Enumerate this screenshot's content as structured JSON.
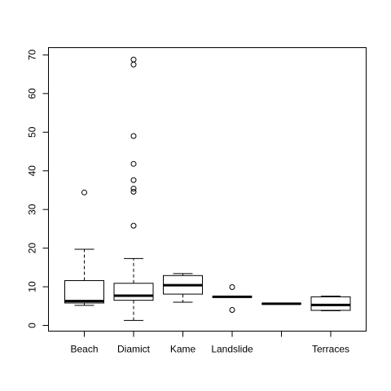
{
  "chart_data": {
    "type": "boxplot",
    "title": "",
    "xlabel": "",
    "ylabel": "",
    "ylim": [
      0,
      70
    ],
    "yticks": [
      0,
      10,
      20,
      30,
      40,
      50,
      60,
      70
    ],
    "grid": false,
    "categories": [
      "Beach",
      "Diamict",
      "Kame",
      "Landslide",
      "",
      "Terraces"
    ],
    "boxes": [
      {
        "category": "Beach",
        "whisker_low": 5.2,
        "q1": 5.8,
        "median": 6.3,
        "q3": 11.6,
        "whisker_high": 19.7,
        "outliers": [
          34.4
        ]
      },
      {
        "category": "Diamict",
        "whisker_low": 1.3,
        "q1": 6.5,
        "median": 7.7,
        "q3": 10.9,
        "whisker_high": 17.3,
        "outliers": [
          25.8,
          34.6,
          35.4,
          37.6,
          41.8,
          49.0,
          67.5,
          68.8
        ]
      },
      {
        "category": "Kame",
        "whisker_low": 6.0,
        "q1": 8.1,
        "median": 10.4,
        "q3": 12.9,
        "whisker_high": 13.4,
        "outliers": []
      },
      {
        "category": "Landslide",
        "whisker_low": 7.3,
        "q1": 7.3,
        "median": 7.4,
        "q3": 7.5,
        "whisker_high": 7.5,
        "outliers": [
          4.0,
          9.9
        ]
      },
      {
        "category": "",
        "whisker_low": 5.6,
        "q1": 5.6,
        "median": 5.6,
        "q3": 5.6,
        "whisker_high": 5.6,
        "outliers": []
      },
      {
        "category": "Terraces",
        "whisker_low": 3.8,
        "q1": 3.9,
        "median": 5.3,
        "q3": 7.4,
        "whisker_high": 7.6,
        "outliers": []
      }
    ]
  }
}
